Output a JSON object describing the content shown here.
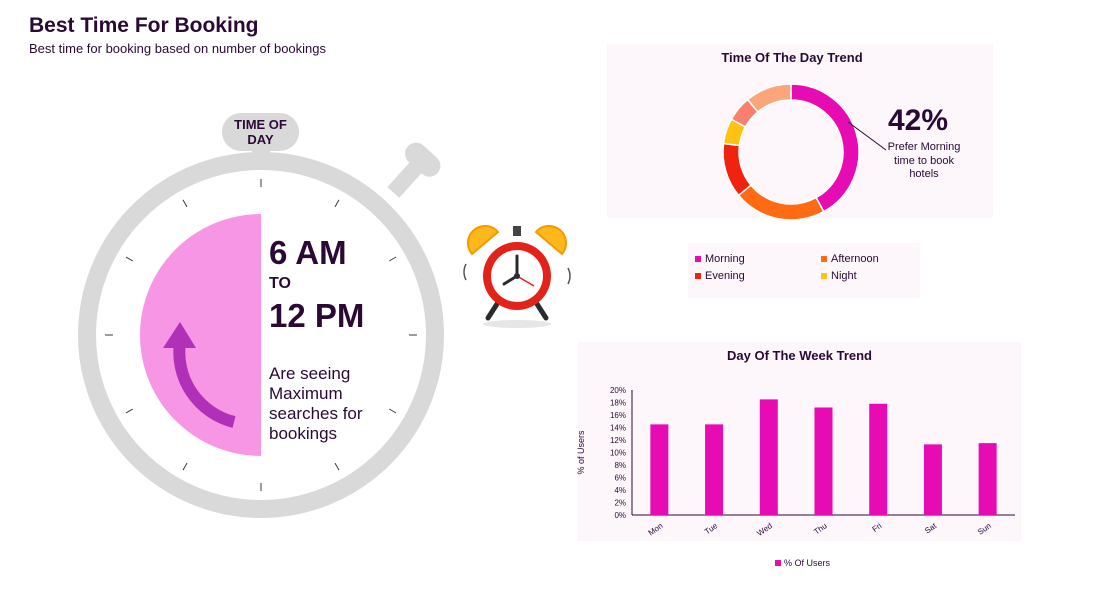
{
  "header": {
    "title": "Best Time For Booking",
    "subtitle": "Best time for booking based on number of bookings"
  },
  "stopwatch": {
    "label": "TIME OF DAY",
    "range_start": "6 AM",
    "range_to": "TO",
    "range_end": "12 PM",
    "description": "Are seeing Maximum searches for bookings",
    "highlight_fraction": 0.5,
    "colors": {
      "ring": "#d9d9d9",
      "highlight": "#f896e6",
      "arrow": "#b030b8"
    }
  },
  "alarm_clock": {
    "icon": "alarm-clock-icon"
  },
  "time_of_day": {
    "title": "Time Of The Day Trend",
    "highlight_value": "42%",
    "highlight_note": "Prefer Morning time to book hotels",
    "legend": [
      {
        "label": "Morning",
        "color": "#e60bb2"
      },
      {
        "label": "Afternoon",
        "color": "#ff6a13"
      },
      {
        "label": "Evening",
        "color": "#f0240e"
      },
      {
        "label": "Night",
        "color": "#ffc20e"
      }
    ]
  },
  "day_of_week": {
    "title": "Day Of The Week Trend",
    "legend_label": "% Of Users",
    "color": "#e60bb2"
  },
  "chart_data": [
    {
      "type": "pie",
      "title": "Time Of The Day Trend",
      "categories": [
        "Morning",
        "Afternoon",
        "Evening",
        "Night",
        "",
        ""
      ],
      "values": [
        42,
        22,
        13,
        6,
        6,
        11
      ],
      "colors": [
        "#e60bb2",
        "#ff6a13",
        "#f0240e",
        "#ffc20e",
        "#fb7f6e",
        "#fba67a"
      ],
      "donut": true
    },
    {
      "type": "bar",
      "title": "Day Of The Week Trend",
      "categories": [
        "Mon",
        "Tue",
        "Wed",
        "Thu",
        "Fri",
        "Sat",
        "Sun"
      ],
      "series": [
        {
          "name": "% Of Users",
          "values": [
            14.5,
            14.5,
            18.5,
            17.2,
            17.8,
            11.3,
            11.5
          ]
        }
      ],
      "ylabel": "% of Users",
      "ylim": [
        0,
        20
      ],
      "yticks": [
        "0%",
        "2%",
        "4%",
        "6%",
        "8%",
        "10%",
        "12%",
        "14%",
        "16%",
        "18%",
        "20%"
      ],
      "grid": false,
      "legend": "bottom"
    }
  ]
}
